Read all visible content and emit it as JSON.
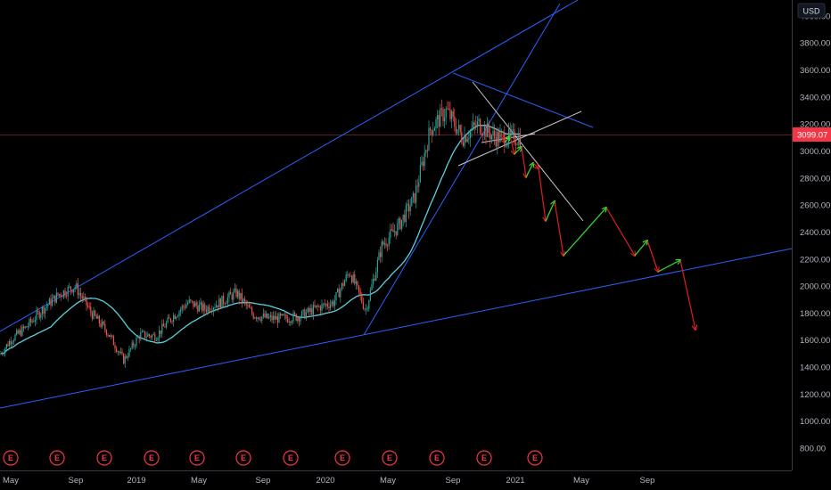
{
  "currency_label": "USD",
  "earnings_marker_label": "E",
  "colors": {
    "background": "#000000",
    "up_candle": "#26a69a",
    "down_candle": "#ef5350",
    "moving_average": "#5ad1e0",
    "trendline": "#2962ff",
    "white_line": "#c8c8c8",
    "arrow_up": "#2ee62e",
    "arrow_down": "#e01e1e",
    "earnings": "#f23645",
    "last_price": "#f23645"
  },
  "chart_data": {
    "type": "candlestick",
    "y_axis_ticks": [
      "800.00",
      "1000.00",
      "1200.00",
      "1400.00",
      "1600.00",
      "1800.00",
      "2000.00",
      "2200.00",
      "2400.00",
      "2600.00",
      "2800.00",
      "3000.00",
      "3200.00",
      "3400.00",
      "3600.00",
      "3800.00",
      "4000.00"
    ],
    "x_axis_ticks": [
      "May",
      "Sep",
      "2019",
      "May",
      "Sep",
      "2020",
      "May",
      "Sep",
      "2021",
      "May",
      "Sep"
    ],
    "ylim": [
      640,
      4240
    ],
    "last_price": 3099.07,
    "last_price_label": "3099.07",
    "earnings_count": 12,
    "price_path": [
      [
        "2018-04",
        1440
      ],
      [
        "2018-05",
        1600
      ],
      [
        "2018-06",
        1700
      ],
      [
        "2018-07",
        1830
      ],
      [
        "2018-08",
        1940
      ],
      [
        "2018-09",
        2000
      ],
      [
        "2018-10",
        1800
      ],
      [
        "2018-11",
        1660
      ],
      [
        "2018-12",
        1450
      ],
      [
        "2019-01",
        1640
      ],
      [
        "2019-02",
        1630
      ],
      [
        "2019-03",
        1770
      ],
      [
        "2019-04",
        1880
      ],
      [
        "2019-05",
        1830
      ],
      [
        "2019-06",
        1880
      ],
      [
        "2019-07",
        1950
      ],
      [
        "2019-08",
        1790
      ],
      [
        "2019-09",
        1760
      ],
      [
        "2019-10",
        1760
      ],
      [
        "2019-11",
        1780
      ],
      [
        "2019-12",
        1840
      ],
      [
        "2020-01",
        1880
      ],
      [
        "2020-02",
        2110
      ],
      [
        "2020-03",
        1820
      ],
      [
        "2020-04",
        2300
      ],
      [
        "2020-05",
        2440
      ],
      [
        "2020-06",
        2650
      ],
      [
        "2020-07",
        3160
      ],
      [
        "2020-08",
        3300
      ],
      [
        "2020-09",
        3100
      ],
      [
        "2020-10",
        3200
      ],
      [
        "2020-11",
        3100
      ],
      [
        "2020-12",
        3099
      ]
    ]
  }
}
